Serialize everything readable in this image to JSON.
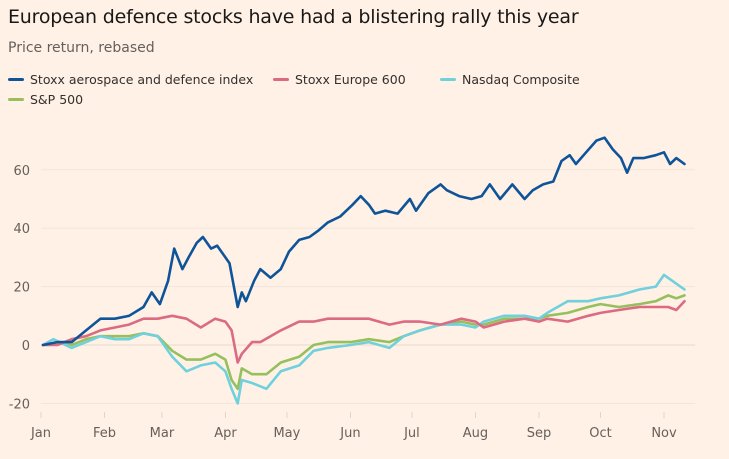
{
  "chart_data": {
    "type": "line",
    "title": "European defence stocks have had a blistering rally this year",
    "subtitle": "Price return, rebased",
    "xlabel": "",
    "ylabel": "",
    "ylim": [
      -22,
      75
    ],
    "yticks": [
      -20,
      0,
      20,
      40,
      60
    ],
    "ytick_labels": [
      "-20",
      "0",
      "20",
      "40",
      "60"
    ],
    "xticks": [
      "Jan",
      "Feb",
      "Mar",
      "Apr",
      "May",
      "Jun",
      "Jul",
      "Aug",
      "Sep",
      "Oct",
      "Nov"
    ],
    "xtick_dates": [
      "2025-01-01",
      "2025-02-01",
      "2025-03-01",
      "2025-04-01",
      "2025-05-01",
      "2025-06-01",
      "2025-07-01",
      "2025-08-01",
      "2025-09-01",
      "2025-10-01",
      "2025-11-01"
    ],
    "grid": true,
    "legend_position": "top",
    "series": [
      {
        "name": "Stoxx aerospace and defence index",
        "color": "#0f5499",
        "points": [
          [
            "2025-01-02",
            0
          ],
          [
            "2025-01-09",
            1
          ],
          [
            "2025-01-16",
            1
          ],
          [
            "2025-01-23",
            5
          ],
          [
            "2025-01-30",
            9
          ],
          [
            "2025-02-06",
            9
          ],
          [
            "2025-02-13",
            10
          ],
          [
            "2025-02-20",
            13
          ],
          [
            "2025-02-24",
            18
          ],
          [
            "2025-02-28",
            14
          ],
          [
            "2025-03-04",
            22
          ],
          [
            "2025-03-07",
            33
          ],
          [
            "2025-03-11",
            26
          ],
          [
            "2025-03-14",
            30
          ],
          [
            "2025-03-18",
            35
          ],
          [
            "2025-03-21",
            37
          ],
          [
            "2025-03-25",
            33
          ],
          [
            "2025-03-28",
            34
          ],
          [
            "2025-04-01",
            30
          ],
          [
            "2025-04-03",
            28
          ],
          [
            "2025-04-07",
            13
          ],
          [
            "2025-04-09",
            18
          ],
          [
            "2025-04-11",
            15
          ],
          [
            "2025-04-15",
            22
          ],
          [
            "2025-04-18",
            26
          ],
          [
            "2025-04-23",
            23
          ],
          [
            "2025-04-28",
            26
          ],
          [
            "2025-05-02",
            32
          ],
          [
            "2025-05-07",
            36
          ],
          [
            "2025-05-12",
            37
          ],
          [
            "2025-05-16",
            39
          ],
          [
            "2025-05-21",
            42
          ],
          [
            "2025-05-27",
            44
          ],
          [
            "2025-06-02",
            48
          ],
          [
            "2025-06-06",
            51
          ],
          [
            "2025-06-10",
            48
          ],
          [
            "2025-06-13",
            45
          ],
          [
            "2025-06-18",
            46
          ],
          [
            "2025-06-24",
            45
          ],
          [
            "2025-06-30",
            50
          ],
          [
            "2025-07-03",
            46
          ],
          [
            "2025-07-09",
            52
          ],
          [
            "2025-07-15",
            55
          ],
          [
            "2025-07-18",
            53
          ],
          [
            "2025-07-24",
            51
          ],
          [
            "2025-07-30",
            50
          ],
          [
            "2025-08-04",
            51
          ],
          [
            "2025-08-08",
            55
          ],
          [
            "2025-08-13",
            50
          ],
          [
            "2025-08-19",
            55
          ],
          [
            "2025-08-25",
            50
          ],
          [
            "2025-08-29",
            53
          ],
          [
            "2025-09-03",
            55
          ],
          [
            "2025-09-08",
            56
          ],
          [
            "2025-09-12",
            63
          ],
          [
            "2025-09-16",
            65
          ],
          [
            "2025-09-19",
            62
          ],
          [
            "2025-09-24",
            66
          ],
          [
            "2025-09-29",
            70
          ],
          [
            "2025-10-03",
            71
          ],
          [
            "2025-10-07",
            67
          ],
          [
            "2025-10-11",
            64
          ],
          [
            "2025-10-14",
            59
          ],
          [
            "2025-10-17",
            64
          ],
          [
            "2025-10-22",
            64
          ],
          [
            "2025-10-28",
            65
          ],
          [
            "2025-11-01",
            66
          ],
          [
            "2025-11-04",
            62
          ],
          [
            "2025-11-07",
            64
          ],
          [
            "2025-11-11",
            62
          ]
        ]
      },
      {
        "name": "Stoxx Europe 600",
        "color": "#db6a82",
        "points": [
          [
            "2025-01-02",
            0
          ],
          [
            "2025-01-09",
            0
          ],
          [
            "2025-01-16",
            2
          ],
          [
            "2025-01-23",
            3
          ],
          [
            "2025-01-30",
            5
          ],
          [
            "2025-02-06",
            6
          ],
          [
            "2025-02-13",
            7
          ],
          [
            "2025-02-20",
            9
          ],
          [
            "2025-02-27",
            9
          ],
          [
            "2025-03-06",
            10
          ],
          [
            "2025-03-13",
            9
          ],
          [
            "2025-03-20",
            6
          ],
          [
            "2025-03-27",
            9
          ],
          [
            "2025-04-01",
            8
          ],
          [
            "2025-04-04",
            5
          ],
          [
            "2025-04-07",
            -6
          ],
          [
            "2025-04-09",
            -3
          ],
          [
            "2025-04-14",
            1
          ],
          [
            "2025-04-18",
            1
          ],
          [
            "2025-04-28",
            5
          ],
          [
            "2025-05-07",
            8
          ],
          [
            "2025-05-14",
            8
          ],
          [
            "2025-05-21",
            9
          ],
          [
            "2025-06-01",
            9
          ],
          [
            "2025-06-10",
            9
          ],
          [
            "2025-06-20",
            7
          ],
          [
            "2025-06-27",
            8
          ],
          [
            "2025-07-05",
            8
          ],
          [
            "2025-07-15",
            7
          ],
          [
            "2025-07-25",
            9
          ],
          [
            "2025-08-01",
            8
          ],
          [
            "2025-08-05",
            6
          ],
          [
            "2025-08-15",
            8
          ],
          [
            "2025-08-25",
            9
          ],
          [
            "2025-09-01",
            8
          ],
          [
            "2025-09-05",
            9
          ],
          [
            "2025-09-15",
            8
          ],
          [
            "2025-09-25",
            10
          ],
          [
            "2025-10-01",
            11
          ],
          [
            "2025-10-10",
            12
          ],
          [
            "2025-10-20",
            13
          ],
          [
            "2025-10-28",
            13
          ],
          [
            "2025-11-03",
            13
          ],
          [
            "2025-11-07",
            12
          ],
          [
            "2025-11-11",
            15
          ]
        ]
      },
      {
        "name": "Nasdaq Composite",
        "color": "#70d0dc",
        "points": [
          [
            "2025-01-02",
            0
          ],
          [
            "2025-01-07",
            2
          ],
          [
            "2025-01-16",
            -1
          ],
          [
            "2025-01-23",
            1
          ],
          [
            "2025-01-30",
            3
          ],
          [
            "2025-02-06",
            2
          ],
          [
            "2025-02-13",
            2
          ],
          [
            "2025-02-20",
            4
          ],
          [
            "2025-02-27",
            3
          ],
          [
            "2025-03-06",
            -4
          ],
          [
            "2025-03-13",
            -9
          ],
          [
            "2025-03-20",
            -7
          ],
          [
            "2025-03-27",
            -6
          ],
          [
            "2025-04-01",
            -9
          ],
          [
            "2025-04-04",
            -15
          ],
          [
            "2025-04-07",
            -20
          ],
          [
            "2025-04-09",
            -12
          ],
          [
            "2025-04-14",
            -13
          ],
          [
            "2025-04-21",
            -15
          ],
          [
            "2025-04-28",
            -9
          ],
          [
            "2025-05-07",
            -7
          ],
          [
            "2025-05-14",
            -2
          ],
          [
            "2025-05-21",
            -1
          ],
          [
            "2025-06-01",
            0
          ],
          [
            "2025-06-10",
            1
          ],
          [
            "2025-06-20",
            -1
          ],
          [
            "2025-06-27",
            3
          ],
          [
            "2025-07-05",
            5
          ],
          [
            "2025-07-15",
            7
          ],
          [
            "2025-07-25",
            7
          ],
          [
            "2025-08-01",
            6
          ],
          [
            "2025-08-05",
            8
          ],
          [
            "2025-08-15",
            10
          ],
          [
            "2025-08-25",
            10
          ],
          [
            "2025-09-01",
            9
          ],
          [
            "2025-09-05",
            11
          ],
          [
            "2025-09-15",
            15
          ],
          [
            "2025-09-25",
            15
          ],
          [
            "2025-10-01",
            16
          ],
          [
            "2025-10-10",
            17
          ],
          [
            "2025-10-20",
            19
          ],
          [
            "2025-10-28",
            20
          ],
          [
            "2025-11-01",
            24
          ],
          [
            "2025-11-07",
            21
          ],
          [
            "2025-11-11",
            19
          ]
        ]
      },
      {
        "name": "S&P 500",
        "color": "#96bf5e",
        "points": [
          [
            "2025-01-02",
            0
          ],
          [
            "2025-01-09",
            1
          ],
          [
            "2025-01-16",
            0
          ],
          [
            "2025-01-23",
            2
          ],
          [
            "2025-01-30",
            3
          ],
          [
            "2025-02-06",
            3
          ],
          [
            "2025-02-13",
            3
          ],
          [
            "2025-02-20",
            4
          ],
          [
            "2025-02-27",
            3
          ],
          [
            "2025-03-06",
            -2
          ],
          [
            "2025-03-13",
            -5
          ],
          [
            "2025-03-20",
            -5
          ],
          [
            "2025-03-27",
            -3
          ],
          [
            "2025-04-01",
            -5
          ],
          [
            "2025-04-04",
            -12
          ],
          [
            "2025-04-07",
            -15
          ],
          [
            "2025-04-09",
            -8
          ],
          [
            "2025-04-14",
            -10
          ],
          [
            "2025-04-21",
            -10
          ],
          [
            "2025-04-28",
            -6
          ],
          [
            "2025-05-07",
            -4
          ],
          [
            "2025-05-14",
            0
          ],
          [
            "2025-05-21",
            1
          ],
          [
            "2025-06-01",
            1
          ],
          [
            "2025-06-10",
            2
          ],
          [
            "2025-06-20",
            1
          ],
          [
            "2025-06-27",
            3
          ],
          [
            "2025-07-05",
            5
          ],
          [
            "2025-07-15",
            7
          ],
          [
            "2025-07-25",
            8
          ],
          [
            "2025-08-01",
            7
          ],
          [
            "2025-08-05",
            7
          ],
          [
            "2025-08-15",
            9
          ],
          [
            "2025-08-25",
            9
          ],
          [
            "2025-09-01",
            9
          ],
          [
            "2025-09-05",
            10
          ],
          [
            "2025-09-15",
            11
          ],
          [
            "2025-09-25",
            13
          ],
          [
            "2025-10-01",
            14
          ],
          [
            "2025-10-10",
            13
          ],
          [
            "2025-10-20",
            14
          ],
          [
            "2025-10-28",
            15
          ],
          [
            "2025-11-03",
            17
          ],
          [
            "2025-11-07",
            16
          ],
          [
            "2025-11-11",
            17
          ]
        ]
      }
    ]
  }
}
